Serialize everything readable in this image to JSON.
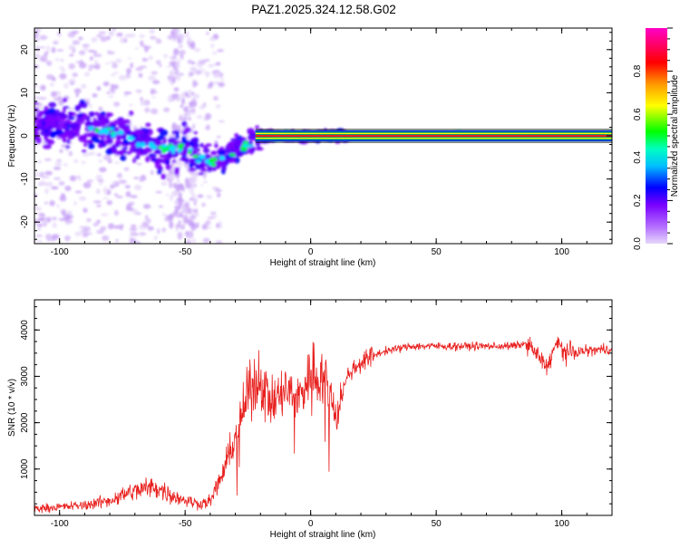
{
  "title": "PAZ1.2025.324.12.58.G02",
  "colors": {
    "snr_line": "#e8201e",
    "carrier_line": "#e8201e",
    "carrier_band": "#009e7a",
    "axis": "#000000"
  },
  "chart_data": [
    {
      "type": "heatmap",
      "title": "PAZ1.2025.324.12.58.G02",
      "xlabel": "Height of straight line (km)",
      "ylabel": "Frequency (Hz)",
      "xlim": [
        -110,
        120
      ],
      "ylim": [
        -25,
        25
      ],
      "xticks": [
        -100,
        -50,
        0,
        50,
        100
      ],
      "xtick_labels": [
        "-100",
        "-50",
        "0",
        "50",
        "100"
      ],
      "yticks": [
        -20,
        -10,
        0,
        10,
        20
      ],
      "ytick_labels": [
        "-20",
        "-10",
        "0",
        "10",
        "20"
      ],
      "colorbar": {
        "label": "Normalized spectral amplitude",
        "range": [
          0,
          1
        ],
        "ticks": [
          0.0,
          0.2,
          0.4,
          0.6,
          0.8
        ],
        "tick_labels": [
          "0.0",
          "0.2",
          "0.4",
          "0.6",
          "0.8"
        ],
        "colormap": [
          "#e6d7fa",
          "#7a00ff",
          "#0000ff",
          "#00e5ff",
          "#00ff00",
          "#ffff00",
          "#ff8000",
          "#ff0000",
          "#ff00c8"
        ]
      },
      "carrier_track": {
        "x": [
          -110,
          -100,
          -90,
          -80,
          -70,
          -60,
          -50,
          -45,
          -40,
          -35,
          -30,
          -25,
          -20,
          -15,
          -10,
          -5,
          0,
          10,
          20,
          120
        ],
        "freq": [
          2,
          3,
          2,
          1,
          -1,
          -3,
          -3,
          -5,
          -6,
          -5,
          -3,
          -2,
          0,
          0,
          0,
          0,
          0,
          0,
          0,
          0
        ]
      }
    },
    {
      "type": "line",
      "xlabel": "Height of straight line (km)",
      "ylabel": "SNR (10 * v/v)",
      "xlim": [
        -110,
        120
      ],
      "ylim": [
        0,
        4650
      ],
      "xticks": [
        -100,
        -50,
        0,
        50,
        100
      ],
      "xtick_labels": [
        "-100",
        "-50",
        "0",
        "50",
        "100"
      ],
      "yticks": [
        1000,
        2000,
        3000,
        4000
      ],
      "ytick_labels": [
        "1000",
        "2000",
        "3000",
        "4000"
      ],
      "x": [
        -110,
        -100,
        -90,
        -80,
        -72,
        -62,
        -55,
        -45,
        -40,
        -35,
        -30,
        -25,
        -20,
        -15,
        -10,
        -5,
        0,
        5,
        10,
        15,
        20,
        25,
        30,
        40,
        50,
        60,
        70,
        80,
        86,
        90,
        94,
        98,
        102,
        110,
        120
      ],
      "y": [
        150,
        180,
        220,
        320,
        500,
        620,
        420,
        250,
        300,
        900,
        1700,
        2600,
        3000,
        2400,
        2700,
        2500,
        3100,
        3000,
        2200,
        3050,
        3300,
        3450,
        3550,
        3650,
        3650,
        3650,
        3650,
        3650,
        3700,
        3500,
        3200,
        3700,
        3500,
        3550,
        3600
      ]
    }
  ]
}
